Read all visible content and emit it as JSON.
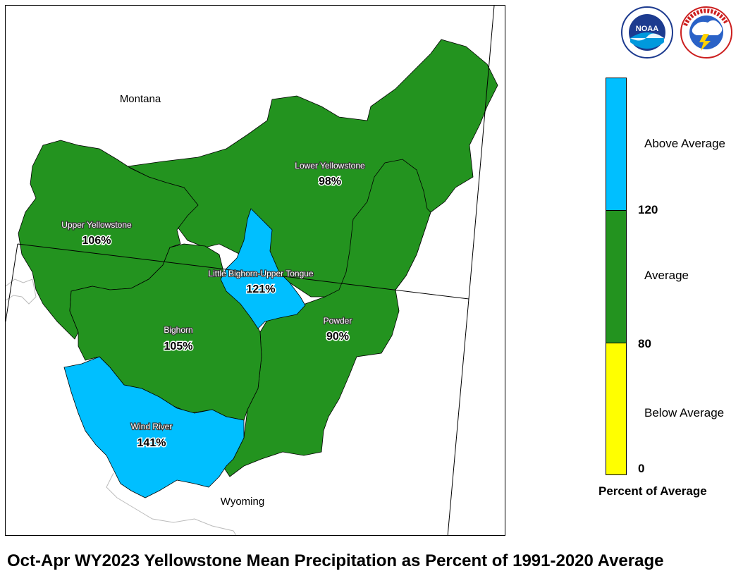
{
  "title": "Oct-Apr WY2023 Yellowstone Mean Precipitation as Percent of 1991-2020 Average",
  "states": {
    "north": "Montana",
    "south": "Wyoming"
  },
  "colors": {
    "above": "#00BFFF",
    "average": "#23931F",
    "below": "#FFFF00",
    "border": "#000000"
  },
  "basins": [
    {
      "name": "Upper Yellowstone",
      "percent": "106%",
      "category": "average"
    },
    {
      "name": "Lower Yellowstone",
      "percent": "98%",
      "category": "average"
    },
    {
      "name": "Little Bighorn-Upper Tongue",
      "percent": "121%",
      "category": "above"
    },
    {
      "name": "Bighorn",
      "percent": "105%",
      "category": "average"
    },
    {
      "name": "Powder",
      "percent": "90%",
      "category": "average"
    },
    {
      "name": "Wind River",
      "percent": "141%",
      "category": "above"
    }
  ],
  "legend": {
    "title": "Percent of Average",
    "categories": [
      {
        "label": "Above Average",
        "color": "#00BFFF"
      },
      {
        "label": "Average",
        "color": "#23931F"
      },
      {
        "label": "Below Average",
        "color": "#FFFF00"
      }
    ],
    "ticks": [
      "120",
      "80",
      "0"
    ]
  },
  "logos": [
    {
      "name": "noaa-logo",
      "text": "NOAA"
    },
    {
      "name": "nws-logo",
      "text": "NATIONAL WEATHER SERVICE"
    }
  ]
}
